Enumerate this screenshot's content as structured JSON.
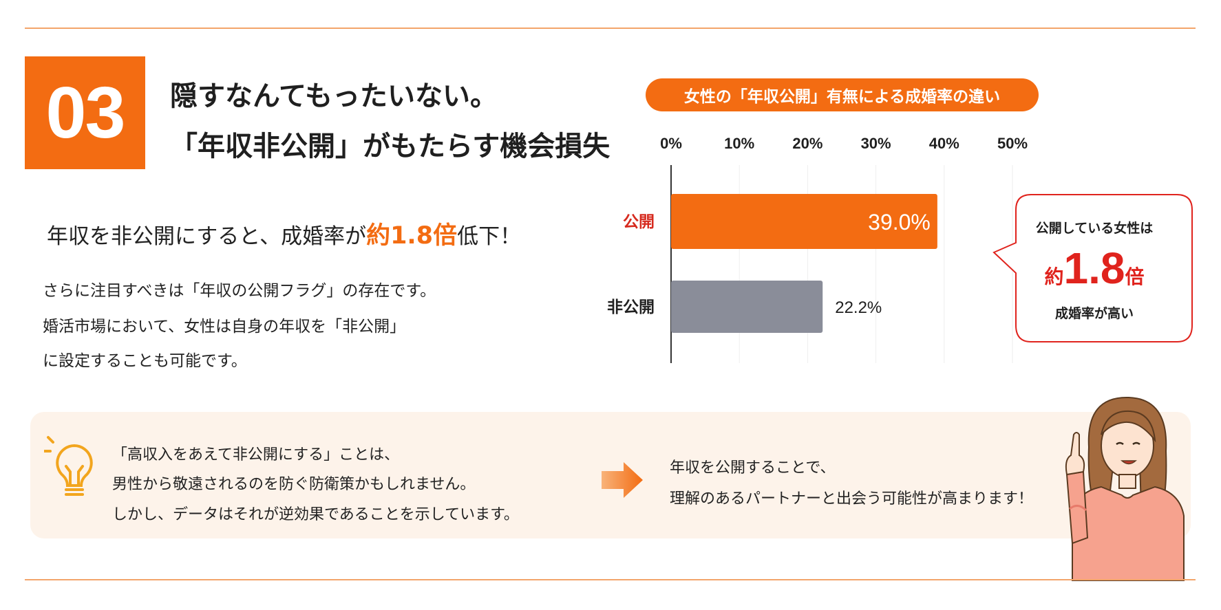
{
  "section": {
    "number": "03",
    "title_line1": "隠すなんてもったいない。",
    "title_line2": "「年収非公開」がもたらす機会損失"
  },
  "lead": {
    "before": "年収を非公開にすると、成婚率が",
    "highlight": "約1.8倍",
    "after": "低下！"
  },
  "body": {
    "line1": "さらに注目すべきは「年収の公開フラグ」の存在です。",
    "line2": "婚活市場において、女性は自身の年収を「非公開」",
    "line3": "に設定することも可能です。"
  },
  "chart_data": {
    "type": "bar",
    "orientation": "horizontal",
    "title": "女性の「年収公開」有無による成婚率の違い",
    "categories": [
      "公開",
      "非公開"
    ],
    "values": [
      39.0,
      22.2
    ],
    "value_labels": [
      "39.0%",
      "22.2%"
    ],
    "xlim": [
      0,
      50
    ],
    "ticks": [
      0,
      10,
      20,
      30,
      40,
      50
    ],
    "tick_labels": [
      "0%",
      "10%",
      "20%",
      "30%",
      "40%",
      "50%"
    ],
    "grid": true,
    "colors": [
      "#f36c12",
      "#8a8d99"
    ],
    "category_colors": [
      "#d62a1e",
      "#222222"
    ]
  },
  "callout": {
    "line1": "公開している女性は",
    "prefix": "約",
    "big": "1.8",
    "suffix": "倍",
    "line3": "成婚率が高い"
  },
  "tip": {
    "line1": "「高収入をあえて非公開にする」ことは、",
    "line2": "男性から敬遠されるのを防ぐ防衛策かもしれません。",
    "line3": "しかし、データはそれが逆効果であることを示しています。"
  },
  "result": {
    "line1": "年収を公開することで、",
    "line2": "理解のあるパートナーと出会う可能性が高まります！"
  },
  "colors": {
    "accent": "#f36c12",
    "highlight_red": "#e0231d",
    "bar_gray": "#8a8d99",
    "tip_bg": "#fdf3ea"
  },
  "icons": [
    "lightbulb-icon",
    "arrow-right-icon",
    "woman-illustration"
  ]
}
